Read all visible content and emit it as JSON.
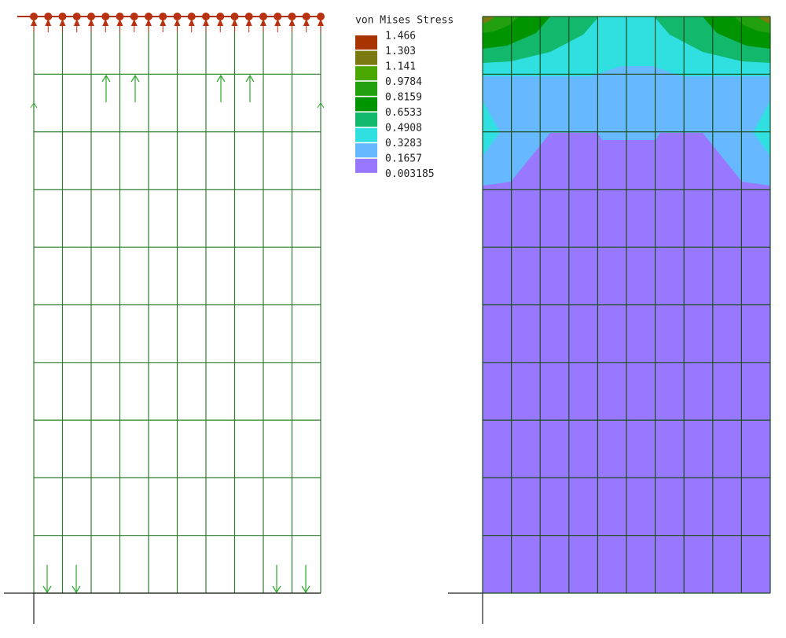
{
  "legend": {
    "title": "von Mises Stress",
    "labels": [
      "1.466",
      "1.303",
      "1.141",
      "0.9784",
      "0.8159",
      "0.6533",
      "0.4908",
      "0.3283",
      "0.1657",
      "0.003185"
    ],
    "colors": [
      "#a83400",
      "#7a7a10",
      "#4aa800",
      "#22a010",
      "#009400",
      "#12b86c",
      "#30e0e0",
      "#66b8ff",
      "#9878ff"
    ]
  }
}
